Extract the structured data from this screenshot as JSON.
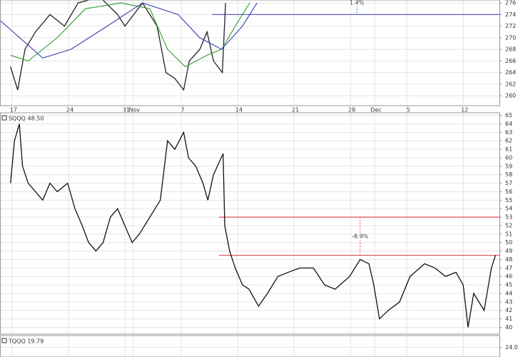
{
  "chart_data": [
    {
      "type": "line",
      "xlim": [
        -1.5,
        60.5
      ],
      "xticks": [
        {
          "value": 0,
          "label": "17"
        },
        {
          "value": 7,
          "label": "24"
        },
        {
          "value": 14,
          "label": "31"
        },
        {
          "value": 15,
          "label": "Nov"
        },
        {
          "value": 21,
          "label": "7"
        },
        {
          "value": 28,
          "label": "14"
        },
        {
          "value": 35,
          "label": "21"
        },
        {
          "value": 42,
          "label": "28"
        },
        {
          "value": 45,
          "label": "Dec"
        },
        {
          "value": 49,
          "label": "5"
        },
        {
          "value": 56,
          "label": "12"
        }
      ],
      "ylim": [
        258.3,
        276.5
      ],
      "yticks": [
        260,
        262,
        264,
        266,
        268,
        270,
        272,
        274,
        276
      ],
      "grid": true,
      "series": [
        {
          "color": "#222222",
          "x": [
            -0.2,
            0.7,
            1.6,
            2.9,
            4.7,
            6.5,
            8.2,
            10.9,
            13.1,
            14.0,
            16.2,
            18.0,
            19.1,
            20.2,
            21.3,
            22.0,
            23.3,
            24.2,
            25.0,
            26.1,
            26.5
          ],
          "values": [
            265,
            261,
            268,
            271,
            274,
            272,
            276,
            277,
            274,
            272,
            276,
            272,
            264,
            263,
            261,
            266,
            268,
            271,
            266,
            264,
            276
          ]
        },
        {
          "color": "#2e9b2e",
          "x": [
            -0.2,
            2.0,
            5.6,
            9.1,
            13.5,
            17.1,
            19.3,
            21.5,
            24.2,
            26.0,
            27.7,
            29.5
          ],
          "values": [
            267,
            266,
            270,
            275,
            276,
            275,
            268,
            265,
            267,
            268,
            272,
            276
          ]
        },
        {
          "color": "#3a3ab0",
          "x": [
            -1.5,
            3.8,
            7.3,
            11.8,
            16.2,
            20.6,
            23.3,
            26.0,
            28.6,
            30.4
          ],
          "values": [
            273,
            266.5,
            268,
            272,
            276,
            274,
            270,
            268,
            272,
            276
          ]
        }
      ],
      "hlines": [
        {
          "value": 274,
          "color": "#4a4ac8"
        }
      ],
      "annotations": [
        {
          "text": "1.4%",
          "x": 42.8
        }
      ]
    },
    {
      "type": "line",
      "label": "SQQQ 48.50",
      "xlim": [
        -1.5,
        60.5
      ],
      "ylim": [
        39.2,
        65.3
      ],
      "yticks": [
        40,
        41,
        42,
        43,
        44,
        45,
        46,
        47,
        48,
        49,
        50,
        51,
        52,
        53,
        54,
        55,
        56,
        57,
        58,
        59,
        60,
        61,
        62,
        63,
        64,
        65
      ],
      "grid": true,
      "series": [
        {
          "color": "#111111",
          "x": [
            -0.2,
            0.3,
            0.9,
            1.3,
            2.0,
            2.9,
            3.8,
            4.7,
            5.6,
            6.9,
            7.8,
            8.7,
            9.5,
            10.4,
            11.3,
            12.2,
            13.1,
            14.0,
            14.9,
            15.8,
            17.1,
            18.4,
            19.3,
            20.2,
            21.3,
            21.9,
            22.8,
            23.7,
            24.3,
            25.0,
            26.2,
            26.4,
            27.0,
            27.7,
            28.6,
            29.4,
            30.6,
            31.7,
            33.0,
            34.3,
            35.7,
            37.4,
            38.8,
            40.1,
            41.9,
            43.2,
            44.3,
            44.9,
            45.6,
            46.7,
            48.1,
            49.4,
            51.2,
            52.5,
            53.8,
            55.1,
            56.0,
            56.6,
            57.3,
            58.6,
            59.5,
            60.0
          ],
          "values": [
            57,
            62,
            64,
            59,
            57,
            56,
            55,
            57,
            56,
            57,
            54,
            52,
            50,
            49,
            50,
            53,
            54,
            52,
            50,
            51,
            53,
            55,
            62,
            61,
            63,
            60,
            59,
            57,
            55,
            58,
            60.5,
            52,
            49,
            47,
            45,
            44.5,
            42.5,
            44,
            46,
            46.5,
            47,
            47,
            45,
            44.5,
            46,
            48,
            47.5,
            45,
            41,
            42,
            43,
            46,
            47.5,
            47,
            46,
            46.5,
            45,
            40,
            44,
            42,
            47,
            48.5
          ]
        }
      ],
      "hlines": [
        {
          "value": 53,
          "color": "#e05050"
        },
        {
          "value": 48.5,
          "color": "#e05050"
        }
      ],
      "annotations": [
        {
          "text": "-8.9%",
          "x": 43.2
        }
      ]
    },
    {
      "type": "line",
      "label": "TQQQ 19.79",
      "xlim": [
        -1.5,
        60.5
      ],
      "ylim": [
        23.0,
        25.2
      ],
      "yticks": [
        {
          "value": 24,
          "label": "24.0"
        }
      ],
      "grid": true,
      "series": []
    }
  ]
}
